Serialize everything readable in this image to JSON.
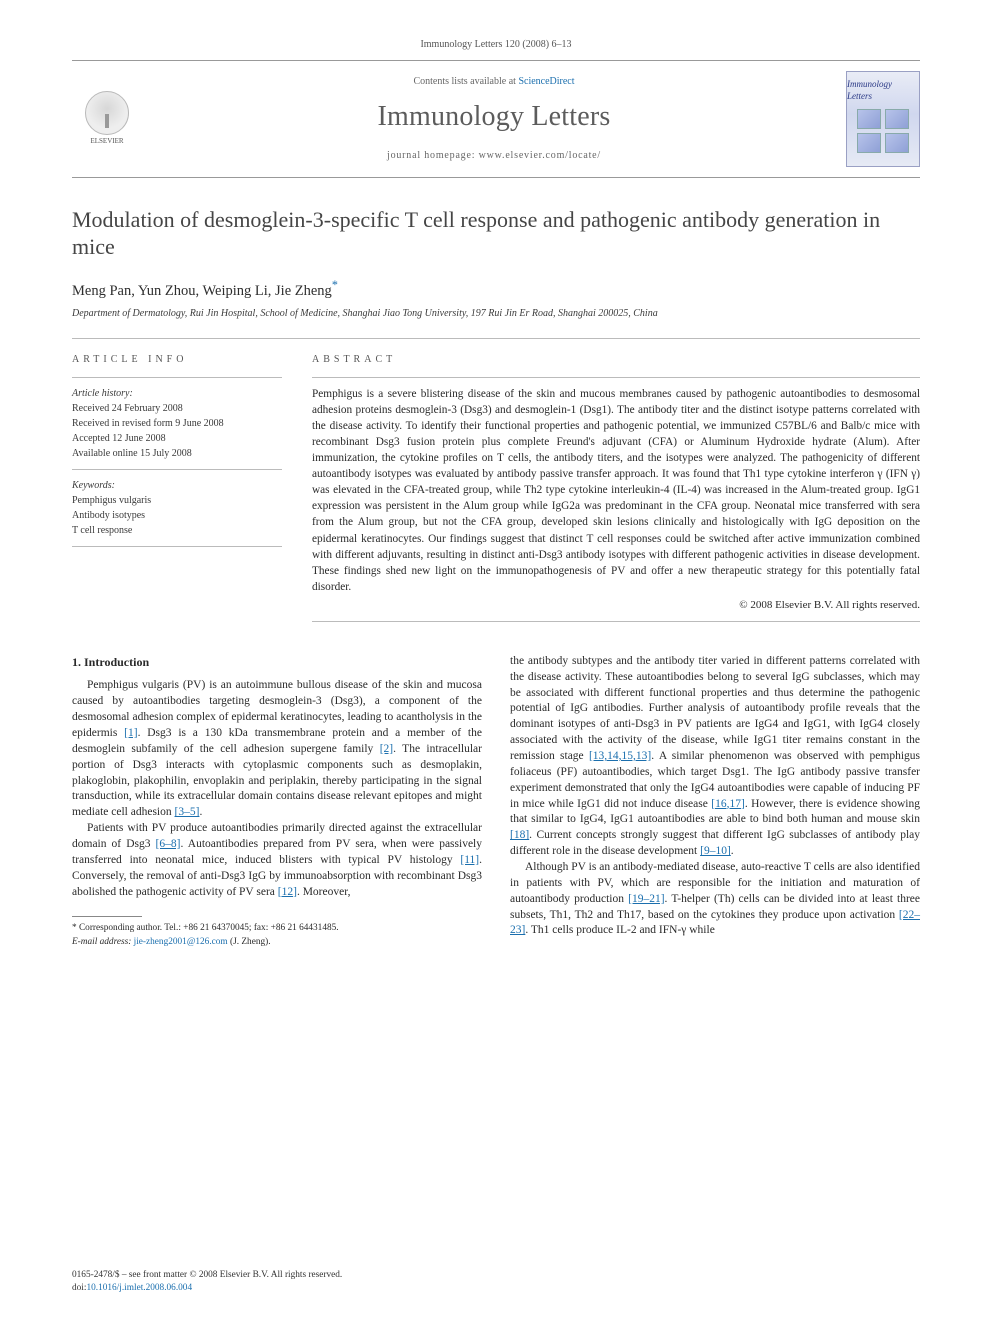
{
  "header_citation": "Immunology Letters 120 (2008) 6–13",
  "masthead": {
    "publisher": "ELSEVIER",
    "contents_prefix": "Contents lists available at ",
    "contents_link": "ScienceDirect",
    "journal": "Immunology Letters",
    "homepage_label": "journal homepage: www.elsevier.com/locate/",
    "cover_mini": "Immunology Letters"
  },
  "article": {
    "title": "Modulation of desmoglein-3-specific T cell response and pathogenic antibody generation in mice",
    "authors_plain": "Meng Pan, Yun Zhou, Weiping Li, Jie Zheng",
    "corr_mark": "*",
    "affiliation": "Department of Dermatology, Rui Jin Hospital, School of Medicine, Shanghai Jiao Tong University, 197 Rui Jin Er Road, Shanghai 200025, China"
  },
  "info": {
    "heading": "ARTICLE INFO",
    "history_label": "Article history:",
    "received": "Received 24 February 2008",
    "revised": "Received in revised form 9 June 2008",
    "accepted": "Accepted 12 June 2008",
    "online": "Available online 15 July 2008",
    "keywords_label": "Keywords:",
    "kw1": "Pemphigus vulgaris",
    "kw2": "Antibody isotypes",
    "kw3": "T cell response"
  },
  "abstract": {
    "heading": "ABSTRACT",
    "text": "Pemphigus is a severe blistering disease of the skin and mucous membranes caused by pathogenic autoantibodies to desmosomal adhesion proteins desmoglein-3 (Dsg3) and desmoglein-1 (Dsg1). The antibody titer and the distinct isotype patterns correlated with the disease activity. To identify their functional properties and pathogenic potential, we immunized C57BL/6 and Balb/c mice with recombinant Dsg3 fusion protein plus complete Freund's adjuvant (CFA) or Aluminum Hydroxide hydrate (Alum). After immunization, the cytokine profiles on T cells, the antibody titers, and the isotypes were analyzed. The pathogenicity of different autoantibody isotypes was evaluated by antibody passive transfer approach. It was found that Th1 type cytokine interferon γ (IFN γ) was elevated in the CFA-treated group, while Th2 type cytokine interleukin-4 (IL-4) was increased in the Alum-treated group. IgG1 expression was persistent in the Alum group while IgG2a was predominant in the CFA group. Neonatal mice transferred with sera from the Alum group, but not the CFA group, developed skin lesions clinically and histologically with IgG deposition on the epidermal keratinocytes. Our findings suggest that distinct T cell responses could be switched after active immunization combined with different adjuvants, resulting in distinct anti-Dsg3 antibody isotypes with different pathogenic activities in disease development. These findings shed new light on the immunopathogenesis of PV and offer a new therapeutic strategy for this potentially fatal disorder.",
    "copyright": "© 2008 Elsevier B.V. All rights reserved."
  },
  "body": {
    "section_number": "1.",
    "section_title": "Introduction",
    "left_p1": "Pemphigus vulgaris (PV) is an autoimmune bullous disease of the skin and mucosa caused by autoantibodies targeting desmoglein-3 (Dsg3), a component of the desmosomal adhesion complex of epidermal keratinocytes, leading to acantholysis in the epidermis [1]. Dsg3 is a 130 kDa transmembrane protein and a member of the desmoglein subfamily of the cell adhesion supergene family [2]. The intracellular portion of Dsg3 interacts with cytoplasmic components such as desmoplakin, plakoglobin, plakophilin, envoplakin and periplakin, thereby participating in the signal transduction, while its extracellular domain contains disease relevant epitopes and might mediate cell adhesion [3–5].",
    "left_p2": "Patients with PV produce autoantibodies primarily directed against the extracellular domain of Dsg3 [6–8]. Autoantibodies prepared from PV sera, when were passively transferred into neonatal mice, induced blisters with typical PV histology [11]. Conversely, the removal of anti-Dsg3 IgG by immunoabsorption with recombinant Dsg3 abolished the pathogenic activity of PV sera [12]. Moreover,",
    "right_p1": "the antibody subtypes and the antibody titer varied in different patterns correlated with the disease activity. These autoantibodies belong to several IgG subclasses, which may be associated with different functional properties and thus determine the pathogenic potential of IgG antibodies. Further analysis of autoantibody profile reveals that the dominant isotypes of anti-Dsg3 in PV patients are IgG4 and IgG1, with IgG4 closely associated with the activity of the disease, while IgG1 titer remains constant in the remission stage [13,14,15,13]. A similar phenomenon was observed with pemphigus foliaceus (PF) autoantibodies, which target Dsg1. The IgG antibody passive transfer experiment demonstrated that only the IgG4 autoantibodies were capable of inducing PF in mice while IgG1 did not induce disease [16,17]. However, there is evidence showing that similar to IgG4, IgG1 autoantibodies are able to bind both human and mouse skin [18]. Current concepts strongly suggest that different IgG subclasses of antibody play different role in the disease development [9–10].",
    "right_p2": "Although PV is an antibody-mediated disease, auto-reactive T cells are also identified in patients with PV, which are responsible for the initiation and maturation of autoantibody production [19–21]. T-helper (Th) cells can be divided into at least three subsets, Th1, Th2 and Th17, based on the cytokines they produce upon activation [22–23]. Th1 cells produce IL-2 and IFN-γ while"
  },
  "footnote": {
    "corr": "* Corresponding author. Tel.: +86 21 64370045; fax: +86 21 64431485.",
    "email_label": "E-mail address:",
    "email": "jie-zheng2001@126.com",
    "email_suffix": "(J. Zheng)."
  },
  "footer": {
    "line1": "0165-2478/$ – see front matter © 2008 Elsevier B.V. All rights reserved.",
    "doi_label": "doi:",
    "doi": "10.1016/j.imlet.2008.06.004"
  },
  "refs": {
    "r1": "[1]",
    "r2": "[2]",
    "r35": "[3–5]",
    "r68": "[6–8]",
    "r11": "[11]",
    "r12": "[12]",
    "r13141513": "[13,14,15,13]",
    "r1617": "[16,17]",
    "r18": "[18]",
    "r910": "[9–10]",
    "r1921": "[19–21]",
    "r2223": "[22–23]"
  }
}
